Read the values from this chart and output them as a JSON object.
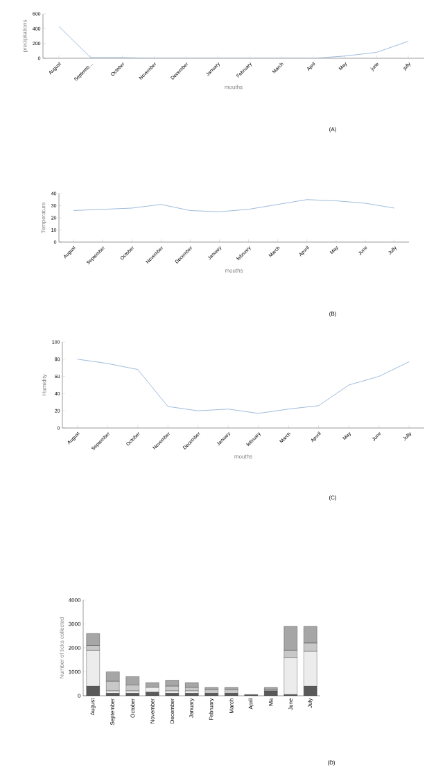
{
  "chart_data": [
    {
      "type": "line",
      "categories": [
        "August",
        "Septemb…",
        "October",
        "November",
        "December",
        "January",
        "February",
        "March",
        "April",
        "May",
        "june",
        "jully"
      ],
      "ylabel": "precipitations",
      "xlabel": "mouths",
      "ylim": [
        0,
        600
      ],
      "yticks": [
        0,
        200,
        400,
        600
      ],
      "annotations": [
        "(A)"
      ],
      "series": [
        {
          "color": "#9dbbdc",
          "values": [
            430,
            10,
            10,
            0,
            0,
            0,
            0,
            0,
            0,
            30,
            80,
            230
          ]
        }
      ]
    },
    {
      "type": "line",
      "categories": [
        "August",
        "September",
        "October",
        "November",
        "December",
        "January",
        "february",
        "March",
        "Apvril",
        "May",
        "June",
        "Jully"
      ],
      "ylabel": "Temperature",
      "xlabel": "mouths",
      "ylim": [
        0,
        40
      ],
      "yticks": [
        0,
        10,
        20,
        30,
        40
      ],
      "annotations": [
        "(B)"
      ],
      "series": [
        {
          "color": "#9dbbdc",
          "values": [
            26,
            27,
            28,
            31,
            26,
            25,
            27,
            31,
            35,
            34,
            32,
            28
          ]
        }
      ]
    },
    {
      "type": "line",
      "categories": [
        "August",
        "September",
        "October",
        "November",
        "December",
        "January",
        "february",
        "March",
        "Apvril",
        "May",
        "June",
        "Jully"
      ],
      "ylabel": "Humidity",
      "xlabel": "mouths",
      "ylim": [
        0,
        100
      ],
      "yticks": [
        0,
        20,
        40,
        60,
        80,
        100
      ],
      "annotations": [
        "(C)"
      ],
      "series": [
        {
          "color": "#9dbbdc",
          "values": [
            80,
            75,
            68,
            25,
            20,
            22,
            17,
            22,
            26,
            50,
            60,
            77
          ]
        }
      ]
    },
    {
      "type": "bar",
      "stacked": true,
      "categories": [
        "August",
        "September",
        "October",
        "November",
        "December",
        "January",
        "February",
        "March",
        "April",
        "Ma",
        "June",
        "July"
      ],
      "ylabel": "Number of ticks collected",
      "ylim": [
        0,
        4000
      ],
      "yticks": [
        0,
        1000,
        2000,
        3000,
        4000
      ],
      "annotations": [
        "(D)"
      ],
      "series": [
        {
          "color": "#595959",
          "values": [
            400,
            100,
            100,
            150,
            100,
            100,
            100,
            100,
            50,
            200,
            50,
            400
          ]
        },
        {
          "color": "#ececec",
          "values": [
            1500,
            100,
            100,
            200,
            100,
            100,
            0,
            0,
            0,
            0,
            1550,
            1450
          ]
        },
        {
          "color": "#c8c8c8",
          "values": [
            200,
            400,
            250,
            0,
            200,
            150,
            150,
            150,
            0,
            50,
            300,
            350
          ]
        },
        {
          "color": "#a6a6a6",
          "values": [
            500,
            400,
            350,
            200,
            250,
            200,
            100,
            100,
            0,
            100,
            1000,
            700
          ]
        }
      ]
    }
  ]
}
